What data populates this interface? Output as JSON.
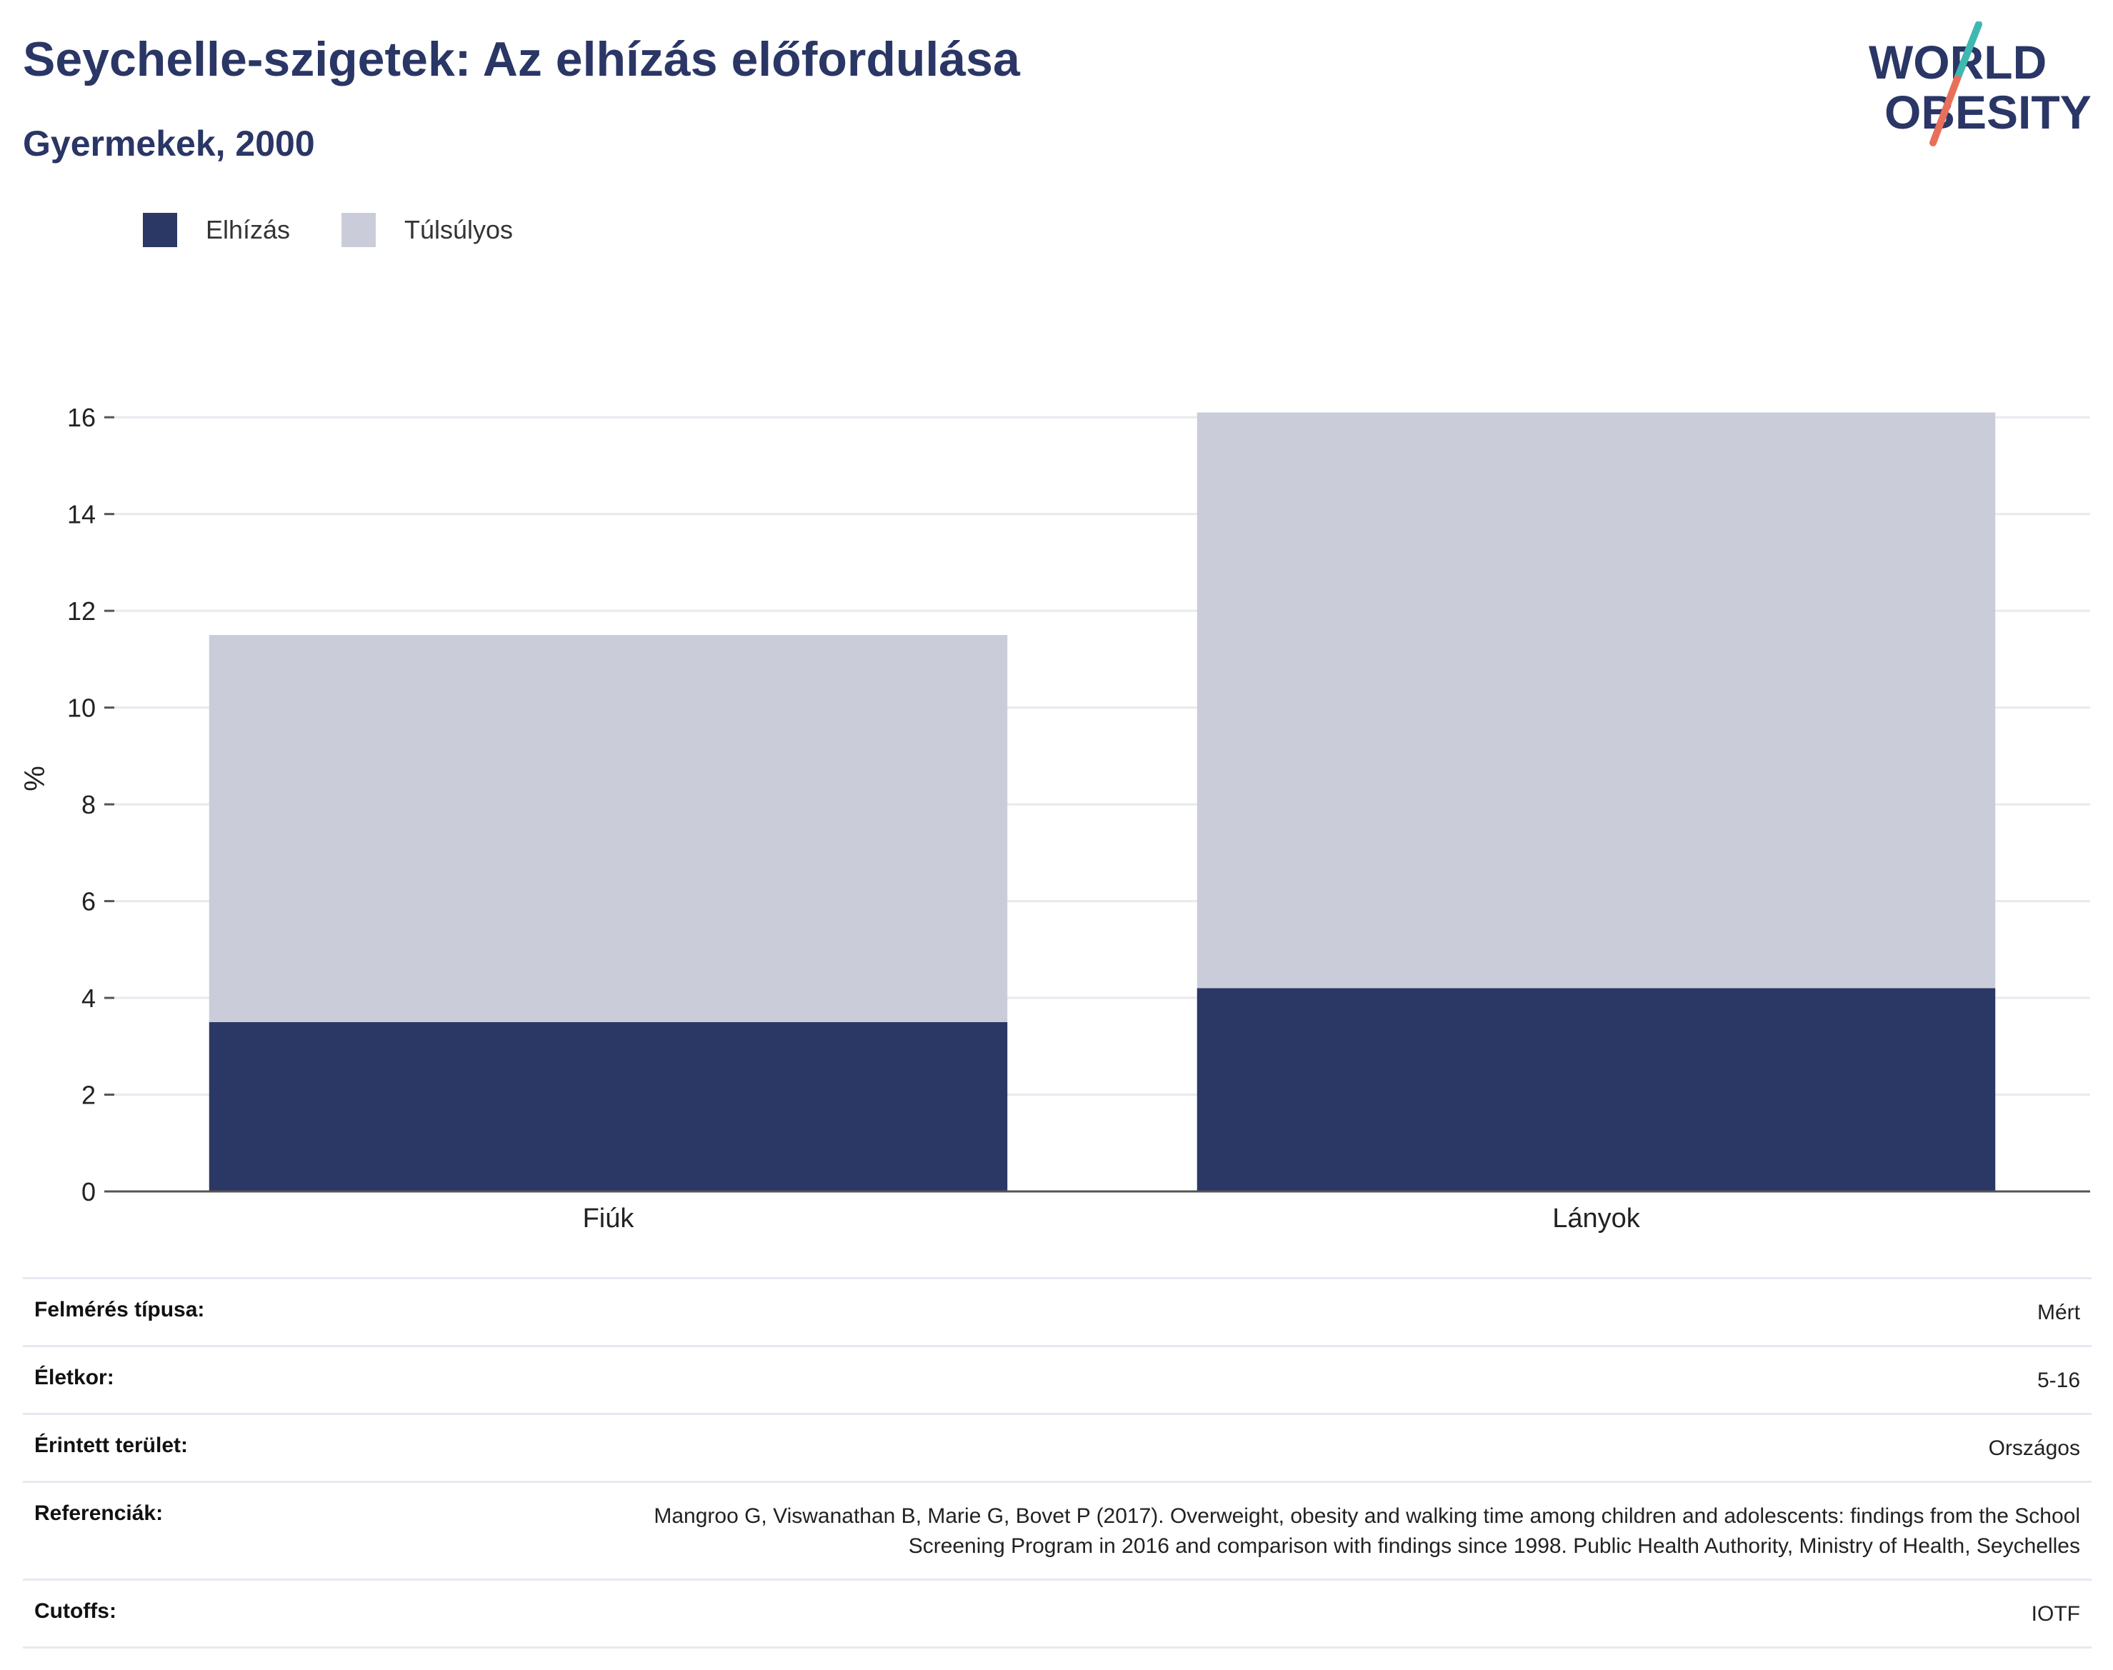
{
  "header": {
    "title": "Seychelle-szigetek: Az elhízás előfordulása",
    "subtitle": "Gyermekek, 2000"
  },
  "logo": {
    "line1": "WORLD",
    "line2": "OBESITY"
  },
  "colors": {
    "obesity": "#2b3764",
    "overweight": "#cacdd9",
    "text_dark": "#2a3665",
    "logo_teal": "#3fb8b0",
    "logo_coral": "#e8705a"
  },
  "chart_data": {
    "type": "bar",
    "stacked": true,
    "categories": [
      "Fiúk",
      "Lányok"
    ],
    "series": [
      {
        "name": "Elhízás",
        "values": [
          3.5,
          4.2
        ]
      },
      {
        "name": "Túlsúlyos",
        "values": [
          8.0,
          11.9
        ]
      }
    ],
    "ylabel": "%",
    "ylim": [
      0,
      16.8
    ],
    "yticks": [
      0,
      2,
      4,
      6,
      8,
      10,
      12,
      14,
      16
    ],
    "grid": true,
    "legend_position": "top-left"
  },
  "meta": [
    {
      "key": "Felmérés típusa:",
      "value": "Mért"
    },
    {
      "key": "Életkor:",
      "value": "5-16"
    },
    {
      "key": "Érintett terület:",
      "value": "Országos"
    },
    {
      "key": "Referenciák:",
      "value": "Mangroo G, Viswanathan B, Marie G, Bovet P (2017). Overweight, obesity and walking time among children and adolescents: findings from the School Screening Program in 2016 and comparison with findings since 1998. Public Health Authority, Ministry of Health, Seychelles"
    },
    {
      "key": "Cutoffs:",
      "value": "IOTF"
    }
  ]
}
